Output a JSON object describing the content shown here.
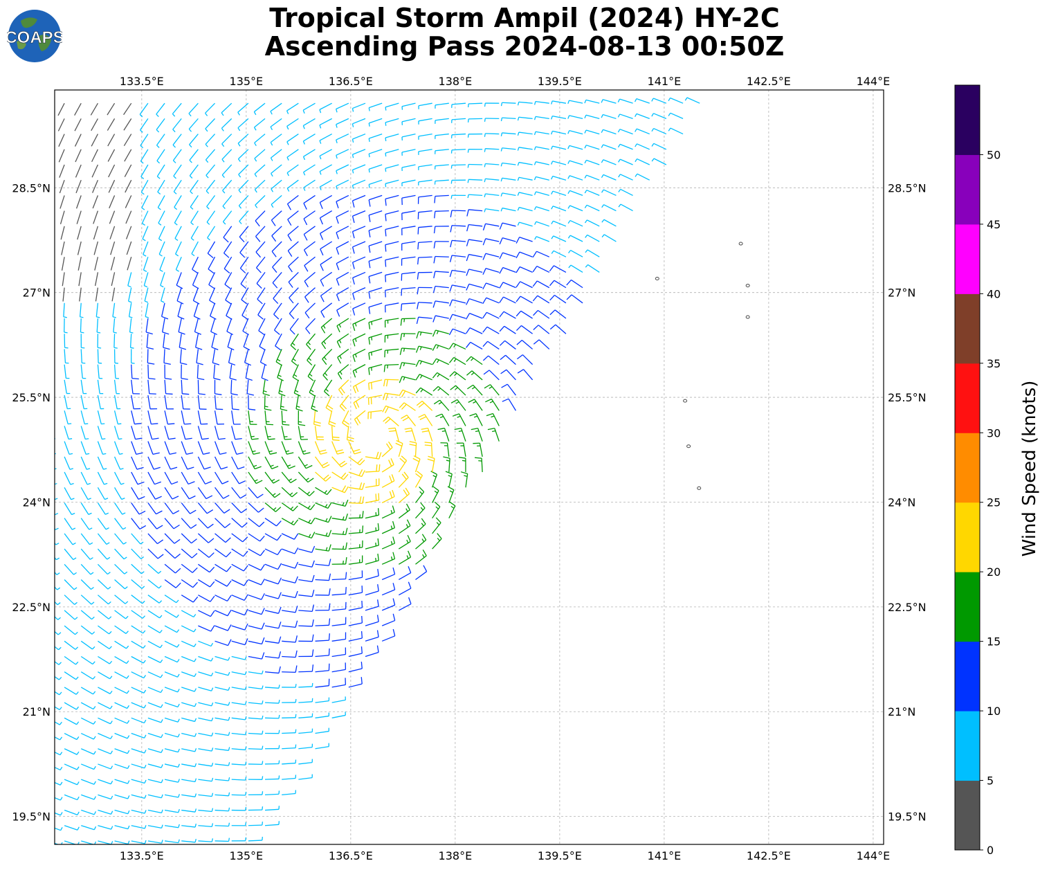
{
  "title": {
    "line1": "Tropical Storm Ampil (2024) HY-2C",
    "line2": "Ascending Pass 2024-08-13 00:50Z"
  },
  "logo": {
    "text": "COAPS"
  },
  "map": {
    "lon_labels": [
      "133.5°E",
      "135°E",
      "136.5°E",
      "138°E",
      "139.5°E",
      "141°E",
      "142.5°E",
      "144°E"
    ],
    "lon_values": [
      133.5,
      135,
      136.5,
      138,
      139.5,
      141,
      142.5,
      144
    ],
    "lat_labels": [
      "28.5°N",
      "27°N",
      "25.5°N",
      "24°N",
      "22.5°N",
      "21°N",
      "19.5°N"
    ],
    "lat_values": [
      28.5,
      27,
      25.5,
      24,
      22.5,
      21,
      19.5
    ],
    "lon_range": [
      132.25,
      144.15
    ],
    "lat_range": [
      19.1,
      29.9
    ],
    "storm_center": {
      "lon": 136.85,
      "lat": 24.9
    },
    "swath_edge_lon_offset_per_lat": 0.6,
    "islands": [
      {
        "name": "island",
        "lon": 140.9,
        "lat": 27.2
      },
      {
        "name": "island",
        "lon": 142.1,
        "lat": 27.7
      },
      {
        "name": "island",
        "lon": 142.2,
        "lat": 27.1
      },
      {
        "name": "island",
        "lon": 142.2,
        "lat": 26.65
      },
      {
        "name": "island",
        "lon": 141.3,
        "lat": 25.45
      },
      {
        "name": "island",
        "lon": 141.35,
        "lat": 24.8
      },
      {
        "name": "island",
        "lon": 141.5,
        "lat": 24.2
      }
    ]
  },
  "colorbar": {
    "label": "Wind Speed (knots)",
    "ticks": [
      "0",
      "5",
      "10",
      "15",
      "20",
      "25",
      "30",
      "35",
      "40",
      "45",
      "50"
    ],
    "colors": [
      "#555555",
      "#00bfff",
      "#0033ff",
      "#009900",
      "#ffd700",
      "#ff8c00",
      "#ff1111",
      "#7f3f29",
      "#ff00ff",
      "#8800bb",
      "#2a0060"
    ]
  }
}
